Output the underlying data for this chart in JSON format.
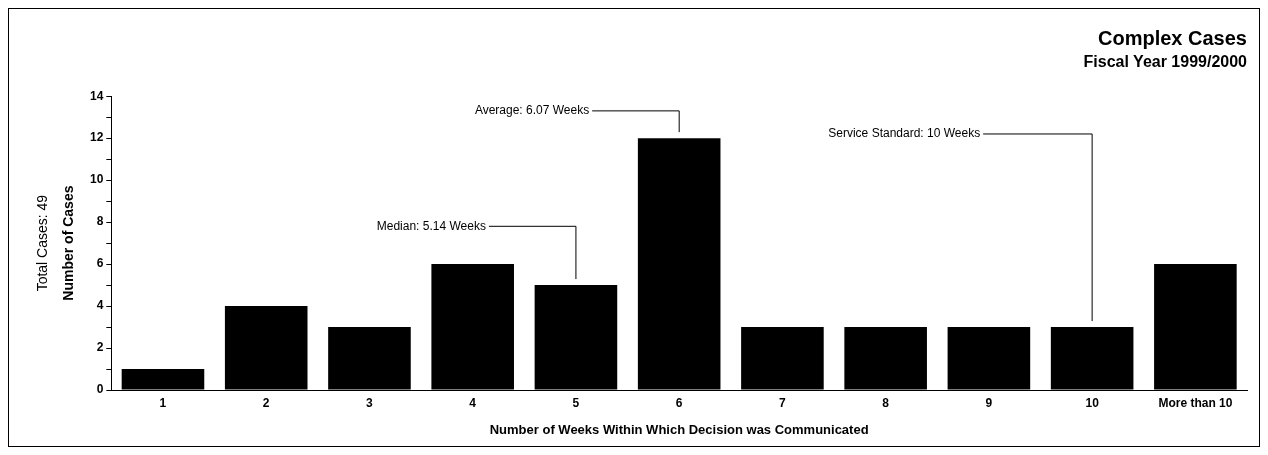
{
  "chart_data": {
    "type": "bar",
    "title": "Complex Cases",
    "subtitle": "Fiscal Year 1999/2000",
    "xlabel": "Number of Weeks Within Which Decision was Communicated",
    "ylabel": "Number of Cases",
    "categories": [
      "1",
      "2",
      "3",
      "4",
      "5",
      "6",
      "7",
      "8",
      "9",
      "10",
      "More than 10"
    ],
    "values": [
      1,
      4,
      3,
      6,
      5,
      12,
      3,
      3,
      3,
      3,
      6
    ],
    "color": "#000000",
    "ylim": [
      0,
      14
    ],
    "yticks": [
      0,
      {
        "value": 1,
        "label": null
      },
      2,
      {
        "value": 3,
        "label": null
      },
      4,
      {
        "value": 5,
        "label": null
      },
      6,
      {
        "value": 7,
        "label": null
      },
      8,
      {
        "value": 9,
        "label": null
      },
      10,
      {
        "value": 11,
        "label": null
      },
      12,
      {
        "value": 13,
        "label": null
      },
      14
    ],
    "annotations": [
      "Total Cases: 49",
      {
        "text": "Median: 5.14 Weeks",
        "x": "5",
        "y": 5
      },
      {
        "text": "Average: 6.07 Weeks",
        "x": "6",
        "y": 12
      },
      {
        "text": "Service Standard: 10 Weeks",
        "x": "10",
        "y": 3
      }
    ],
    "legend": false
  }
}
